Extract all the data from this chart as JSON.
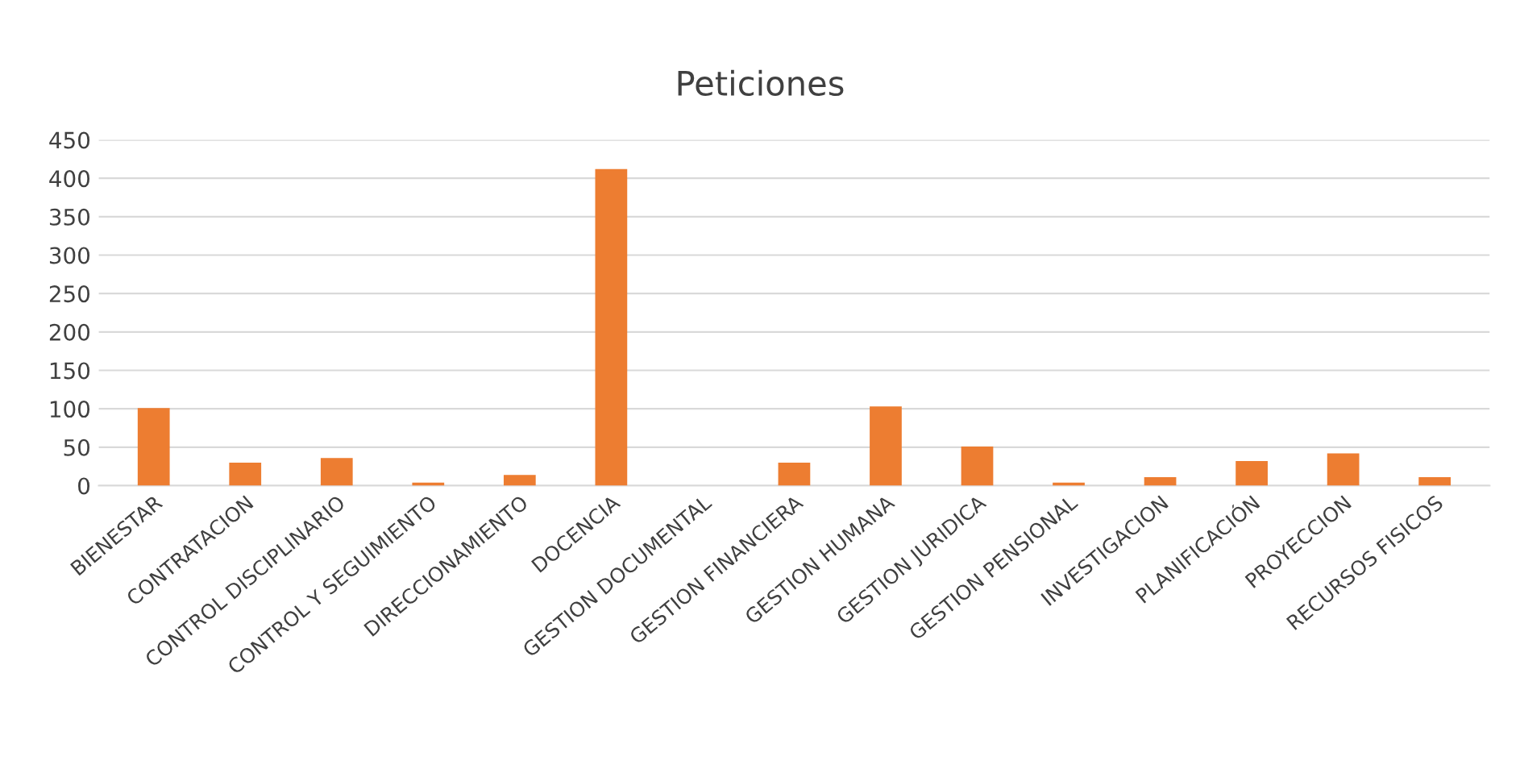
{
  "chart_data": {
    "type": "bar",
    "title": "Peticiones",
    "categories": [
      "BIENESTAR",
      "CONTRATACION",
      "CONTROL DISCIPLINARIO",
      "CONTROL Y SEGUIMIENTO",
      "DIRECCIONAMIENTO",
      "DOCENCIA",
      "GESTION DOCUMENTAL",
      "GESTION FINANCIERA",
      "GESTION HUMANA",
      "GESTION JURIDICA",
      "GESTION PENSIONAL",
      "INVESTIGACION",
      "PLANIFICACIÓN",
      "PROYECCION",
      "RECURSOS FISICOS"
    ],
    "values": [
      101,
      30,
      36,
      4,
      14,
      412,
      null,
      30,
      103,
      51,
      4,
      11,
      32,
      42,
      11
    ],
    "color": "#ed7d31",
    "ylim": [
      0,
      450
    ],
    "yticks": [
      0,
      50,
      100,
      150,
      200,
      250,
      300,
      350,
      400,
      450
    ],
    "grid": "y"
  }
}
